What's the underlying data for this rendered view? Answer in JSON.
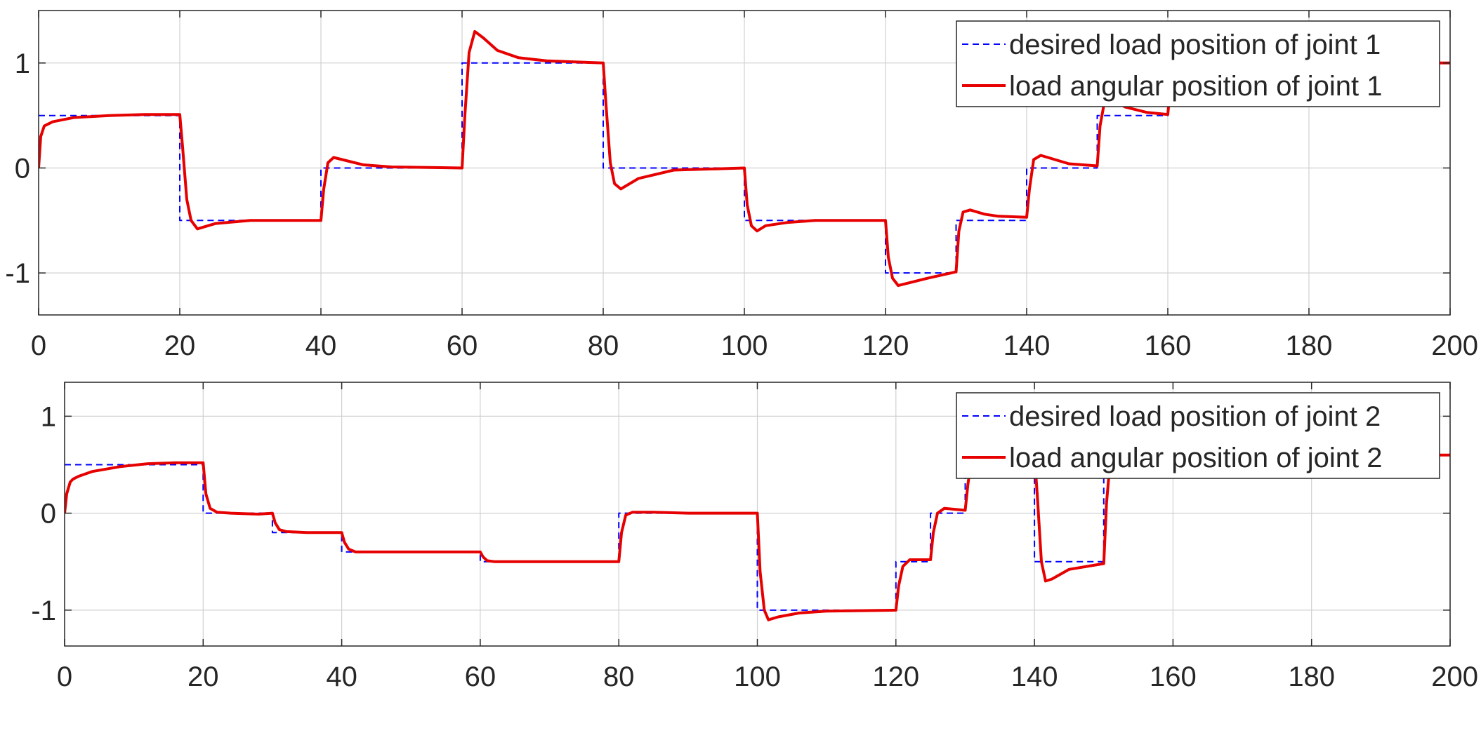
{
  "chart_data": [
    {
      "type": "line",
      "xlim": [
        0,
        200
      ],
      "ylim": [
        -1.4,
        1.5
      ],
      "xticks": [
        0,
        20,
        40,
        60,
        80,
        100,
        120,
        140,
        160,
        180,
        200
      ],
      "yticks": [
        -1,
        0,
        1
      ],
      "grid": true,
      "legend_position": "top-right",
      "series": [
        {
          "name": "desired load position of joint 1",
          "style": "dashed",
          "color": "#0000ff",
          "x": [
            0,
            20,
            20,
            40,
            40,
            60,
            60,
            80,
            80,
            100,
            100,
            120,
            120,
            130,
            130,
            140,
            140,
            150,
            150,
            160,
            160,
            200
          ],
          "y": [
            0.5,
            0.5,
            -0.5,
            -0.5,
            0,
            0,
            1,
            1,
            0,
            0,
            -0.5,
            -0.5,
            -1,
            -1,
            -0.5,
            -0.5,
            0,
            0,
            0.5,
            0.5,
            1,
            1
          ]
        },
        {
          "name": "load angular position of joint 1",
          "style": "solid",
          "color": "#e60000",
          "x": [
            0,
            0.3,
            0.8,
            2,
            5,
            10,
            15,
            20,
            20.4,
            21,
            21.6,
            22.5,
            25,
            30,
            40,
            40.4,
            41,
            41.8,
            43,
            46,
            50,
            60,
            60.4,
            61,
            61.8,
            63,
            65,
            68,
            72,
            80,
            80.4,
            81,
            81.6,
            82.5,
            85,
            90,
            100,
            100.4,
            101,
            101.8,
            103,
            106,
            110,
            120,
            120.4,
            121,
            121.8,
            123,
            126,
            130,
            130.4,
            131,
            132,
            134,
            136,
            140,
            140.4,
            141,
            142,
            144,
            146,
            150,
            150.4,
            151,
            152,
            154,
            157,
            160,
            160.4,
            161,
            162,
            165,
            170,
            200
          ],
          "y": [
            0,
            0.3,
            0.4,
            0.44,
            0.48,
            0.5,
            0.51,
            0.51,
            0.2,
            -0.3,
            -0.5,
            -0.58,
            -0.53,
            -0.5,
            -0.5,
            -0.2,
            0.05,
            0.1,
            0.08,
            0.03,
            0.01,
            0,
            0.5,
            1.1,
            1.3,
            1.24,
            1.12,
            1.05,
            1.02,
            1,
            0.6,
            0.05,
            -0.15,
            -0.2,
            -0.1,
            -0.02,
            0,
            -0.35,
            -0.55,
            -0.6,
            -0.55,
            -0.52,
            -0.5,
            -0.5,
            -0.85,
            -1.05,
            -1.12,
            -1.1,
            -1.05,
            -0.99,
            -0.6,
            -0.42,
            -0.4,
            -0.44,
            -0.46,
            -0.47,
            -0.2,
            0.08,
            0.12,
            0.08,
            0.04,
            0.02,
            0.4,
            0.62,
            0.65,
            0.58,
            0.53,
            0.51,
            0.8,
            0.98,
            1.0,
            1.0,
            1.0,
            1.0
          ]
        }
      ]
    },
    {
      "type": "line",
      "xlim": [
        0,
        200
      ],
      "ylim": [
        -1.37,
        1.35
      ],
      "xticks": [
        0,
        20,
        40,
        60,
        80,
        100,
        120,
        140,
        160,
        180,
        200
      ],
      "yticks": [
        -1,
        0,
        1
      ],
      "grid": true,
      "legend_position": "top-right",
      "series": [
        {
          "name": "desired load position of joint 2",
          "style": "dashed",
          "color": "#0000ff",
          "x": [
            0,
            20,
            20,
            30,
            30,
            40,
            40,
            60,
            60,
            80,
            80,
            100,
            100,
            120,
            120,
            125,
            125,
            130,
            130,
            140,
            140,
            150,
            150,
            200
          ],
          "y": [
            0.5,
            0.5,
            0,
            0,
            -0.2,
            -0.2,
            -0.4,
            -0.4,
            -0.5,
            -0.5,
            0,
            0,
            -1,
            -1,
            -0.5,
            -0.5,
            0,
            0,
            0.6,
            0.6,
            -0.5,
            -0.5,
            0.6,
            0.6
          ]
        },
        {
          "name": "load angular position of joint 2",
          "style": "solid",
          "color": "#e60000",
          "x": [
            0,
            0.3,
            0.8,
            1.2,
            2,
            4,
            8,
            12,
            16,
            20,
            20.4,
            21,
            22,
            24,
            28,
            30,
            30.4,
            31,
            32,
            35,
            40,
            40.4,
            41,
            42,
            45,
            50,
            60,
            60.4,
            61,
            62,
            65,
            70,
            80,
            80.4,
            81,
            82,
            85,
            90,
            100,
            100.4,
            101,
            101.6,
            103,
            106,
            110,
            120,
            120.4,
            121,
            122,
            125,
            125.4,
            126,
            127,
            130,
            130.4,
            131,
            140,
            140.4,
            141,
            141.6,
            142.5,
            145,
            150,
            150.4,
            151,
            200
          ],
          "y": [
            0,
            0.2,
            0.32,
            0.35,
            0.38,
            0.43,
            0.48,
            0.51,
            0.52,
            0.52,
            0.2,
            0.05,
            0.01,
            0.0,
            -0.01,
            0,
            -0.1,
            -0.17,
            -0.19,
            -0.2,
            -0.2,
            -0.3,
            -0.37,
            -0.4,
            -0.4,
            -0.4,
            -0.4,
            -0.45,
            -0.49,
            -0.5,
            -0.5,
            -0.5,
            -0.5,
            -0.2,
            -0.02,
            0.01,
            0.01,
            0.0,
            0,
            -0.6,
            -1.0,
            -1.1,
            -1.07,
            -1.03,
            -1.01,
            -1.0,
            -0.75,
            -0.55,
            -0.48,
            -0.48,
            -0.2,
            0.0,
            0.05,
            0.03,
            0.3,
            0.6,
            0.6,
            0.2,
            -0.5,
            -0.7,
            -0.68,
            -0.58,
            -0.52,
            0.1,
            0.6,
            0.6
          ]
        }
      ]
    }
  ]
}
